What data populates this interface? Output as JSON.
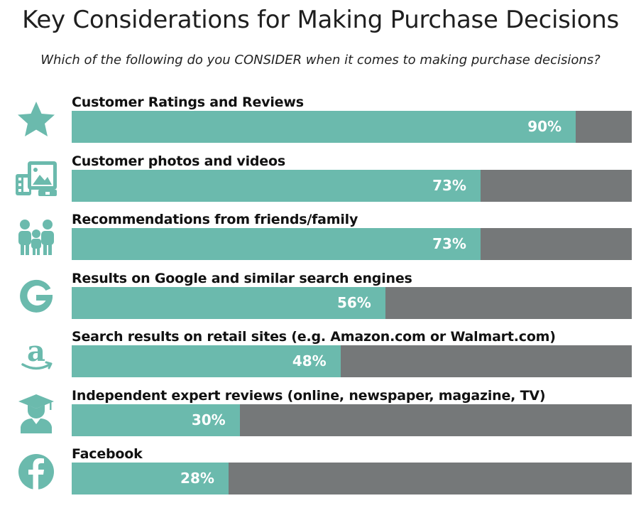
{
  "title": "Key Considerations for Making Purchase Decisions",
  "subtitle": "Which of the following do you CONSIDER when it comes to making purchase decisions?",
  "colors": {
    "bar_fill": "#6bbaad",
    "bar_track": "#757879",
    "icon": "#6bbaad"
  },
  "chart_data": {
    "type": "bar",
    "orientation": "horizontal",
    "title": "Key Considerations for Making Purchase Decisions",
    "subtitle": "Which of the following do you CONSIDER when it comes to making purchase decisions?",
    "xlim": [
      0,
      100
    ],
    "unit": "%",
    "categories": [
      "Customer Ratings and Reviews",
      "Customer photos and videos",
      "Recommendations from friends/family",
      "Results on Google and similar search engines",
      "Search results on retail sites (e.g. Amazon.com or Walmart.com)",
      "Independent expert reviews (online, newspaper, magazine, TV)",
      "Facebook"
    ],
    "values": [
      90,
      73,
      73,
      56,
      48,
      30,
      28
    ],
    "value_labels": [
      "90%",
      "73%",
      "73%",
      "56%",
      "48%",
      "30%",
      "28%"
    ],
    "icons": [
      "star-icon",
      "photos-icon",
      "family-icon",
      "google-icon",
      "amazon-icon",
      "expert-icon",
      "facebook-icon"
    ]
  }
}
